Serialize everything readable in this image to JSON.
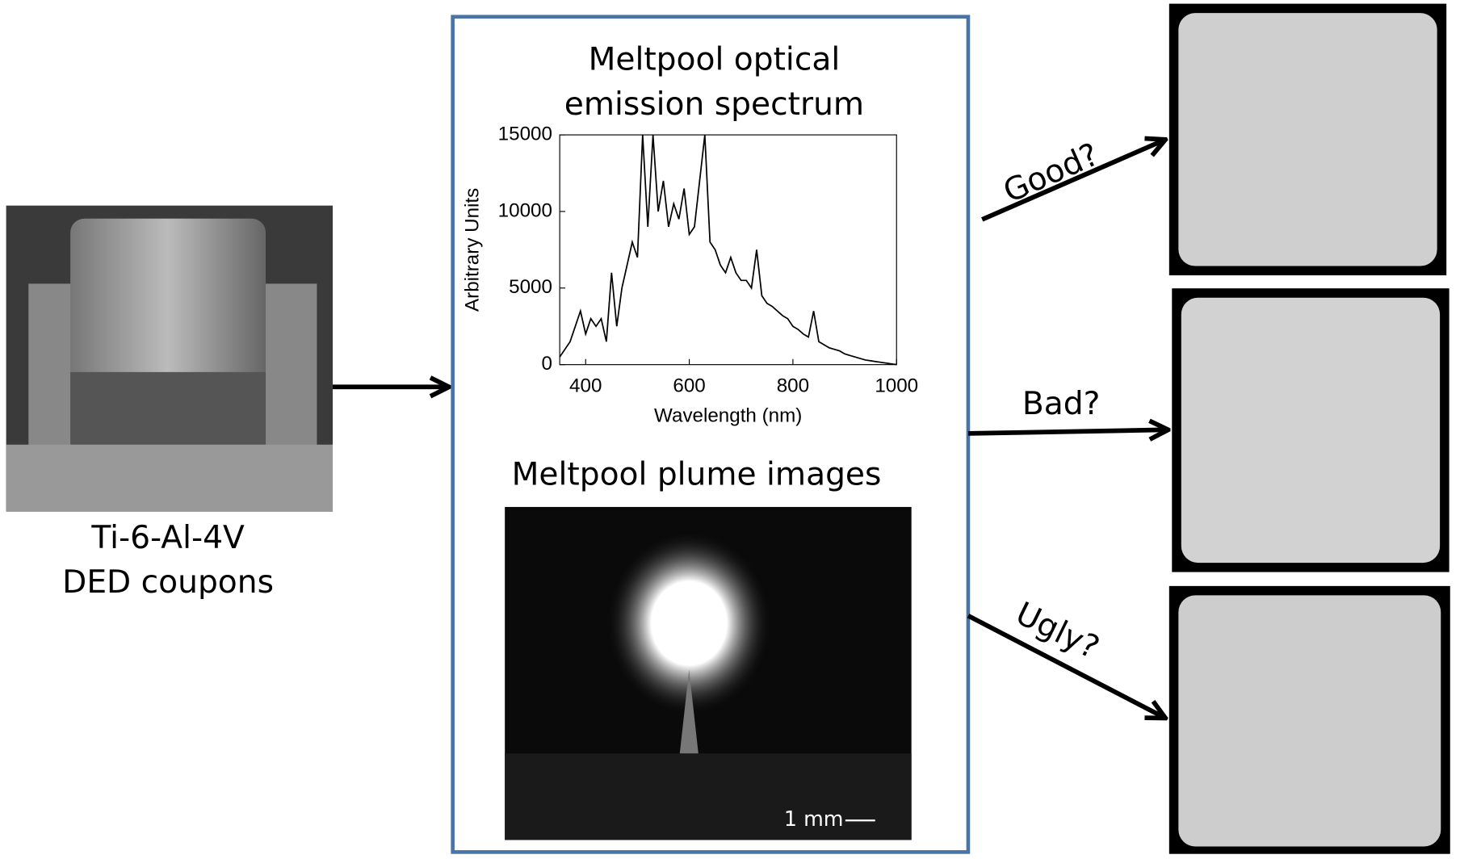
{
  "coupon": {
    "label_line1": "Ti-6-Al-4V",
    "label_line2": "DED coupons"
  },
  "panel": {
    "spectrum_title_line1": "Meltpool optical",
    "spectrum_title_line2": "emission spectrum",
    "plume_title": "Meltpool plume images",
    "scale_bar": "1 mm"
  },
  "outcomes": [
    "Good?",
    "Bad?",
    "Ugly?"
  ],
  "chart_data": {
    "type": "line",
    "xlabel": "Wavelength (nm)",
    "ylabel": "Arbitrary Units",
    "color": "#000000",
    "x": [
      350,
      360,
      370,
      380,
      390,
      400,
      410,
      420,
      430,
      440,
      450,
      460,
      470,
      480,
      490,
      500,
      510,
      520,
      530,
      540,
      550,
      560,
      570,
      580,
      590,
      600,
      610,
      620,
      630,
      640,
      650,
      660,
      670,
      680,
      690,
      700,
      710,
      720,
      730,
      740,
      750,
      760,
      770,
      780,
      790,
      800,
      810,
      820,
      830,
      840,
      850,
      860,
      870,
      880,
      890,
      900,
      910,
      920,
      930,
      940,
      950,
      960,
      970,
      980,
      990,
      1000
    ],
    "values": [
      500,
      1000,
      1500,
      2500,
      3500,
      2000,
      3000,
      2500,
      3000,
      1500,
      6000,
      2500,
      5000,
      6500,
      8000,
      7000,
      15000,
      9000,
      15000,
      10000,
      12000,
      9000,
      10500,
      9500,
      11500,
      8500,
      9000,
      12000,
      15000,
      8000,
      7500,
      6500,
      6000,
      7000,
      6000,
      5500,
      5500,
      5000,
      7500,
      4500,
      4000,
      3800,
      3500,
      3200,
      3000,
      2500,
      2300,
      2000,
      1800,
      3500,
      1500,
      1300,
      1100,
      1000,
      900,
      700,
      600,
      500,
      400,
      300,
      250,
      200,
      150,
      100,
      50,
      0
    ],
    "xlim": [
      350,
      1000
    ],
    "ylim": [
      0,
      15000
    ],
    "xticks": [
      400,
      600,
      800,
      1000
    ],
    "yticks": [
      0,
      5000,
      10000,
      15000
    ]
  }
}
